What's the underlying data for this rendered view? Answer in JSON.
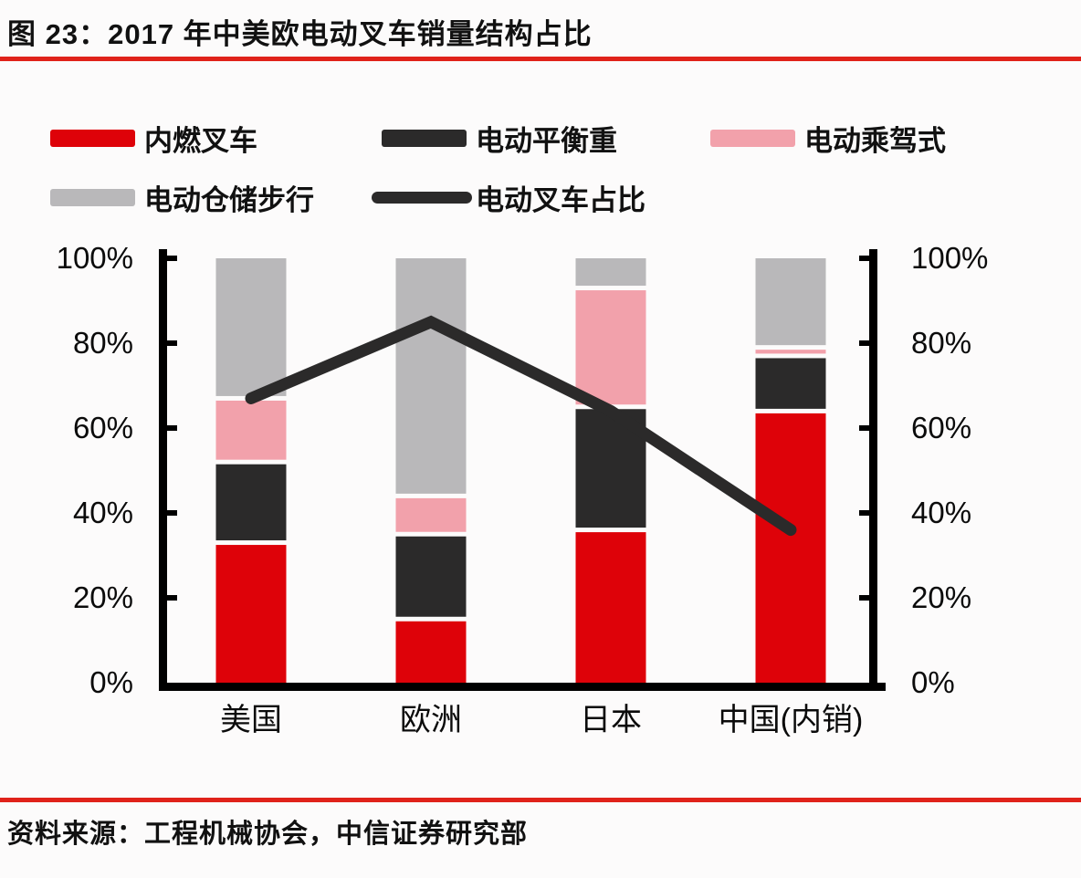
{
  "header": {
    "title": "图 23：2017 年中美欧电动叉车销量结构占比"
  },
  "footer": {
    "source": "资料来源：工程机械协会，中信证券研究部"
  },
  "colors": {
    "accent_rule": "#e0221a",
    "ice_red": "#de0209",
    "counterbalance_dark": "#2b2a2a",
    "rider_pink": "#f2a1ab",
    "warehouse_gray": "#b9b8ba",
    "trend_line": "#2b2a2a"
  },
  "legend": {
    "rows": [
      [
        {
          "label": "内燃叉车",
          "swatch": "rect",
          "color": "#de0209"
        },
        {
          "label": "电动平衡重",
          "swatch": "rect",
          "color": "#2b2a2a"
        },
        {
          "label": "电动乘驾式",
          "swatch": "rect",
          "color": "#f2a1ab"
        }
      ],
      [
        {
          "label": "电动仓储步行",
          "swatch": "rect",
          "color": "#b9b8ba"
        },
        {
          "label": "电动叉车占比",
          "swatch": "line",
          "color": "#2b2a2a"
        }
      ]
    ]
  },
  "chart_data": {
    "type": "bar",
    "subtype": "stacked-percent-with-line",
    "title": "2017 年中美欧电动叉车销量结构占比",
    "categories": [
      "美国",
      "欧洲",
      "日本",
      "中国(内销)"
    ],
    "series": [
      {
        "name": "内燃叉车",
        "color": "#de0209",
        "values": [
          33,
          15,
          36,
          64
        ]
      },
      {
        "name": "电动平衡重",
        "color": "#2b2a2a",
        "values": [
          19,
          20,
          29,
          13
        ]
      },
      {
        "name": "电动乘驾式",
        "color": "#f2a1ab",
        "values": [
          15,
          9,
          28,
          2
        ]
      },
      {
        "name": "电动仓储步行",
        "color": "#b9b8ba",
        "values": [
          33,
          56,
          7,
          21
        ]
      }
    ],
    "line_series": {
      "name": "电动叉车占比",
      "color": "#2b2a2a",
      "values": [
        67,
        85,
        64,
        36
      ]
    },
    "unit": "%",
    "y_axis": {
      "min": 0,
      "max": 100,
      "tick_labels": [
        "0%",
        "20%",
        "40%",
        "60%",
        "80%",
        "100%"
      ],
      "left": true,
      "right": true,
      "grid": false
    },
    "legend_position": "top"
  }
}
